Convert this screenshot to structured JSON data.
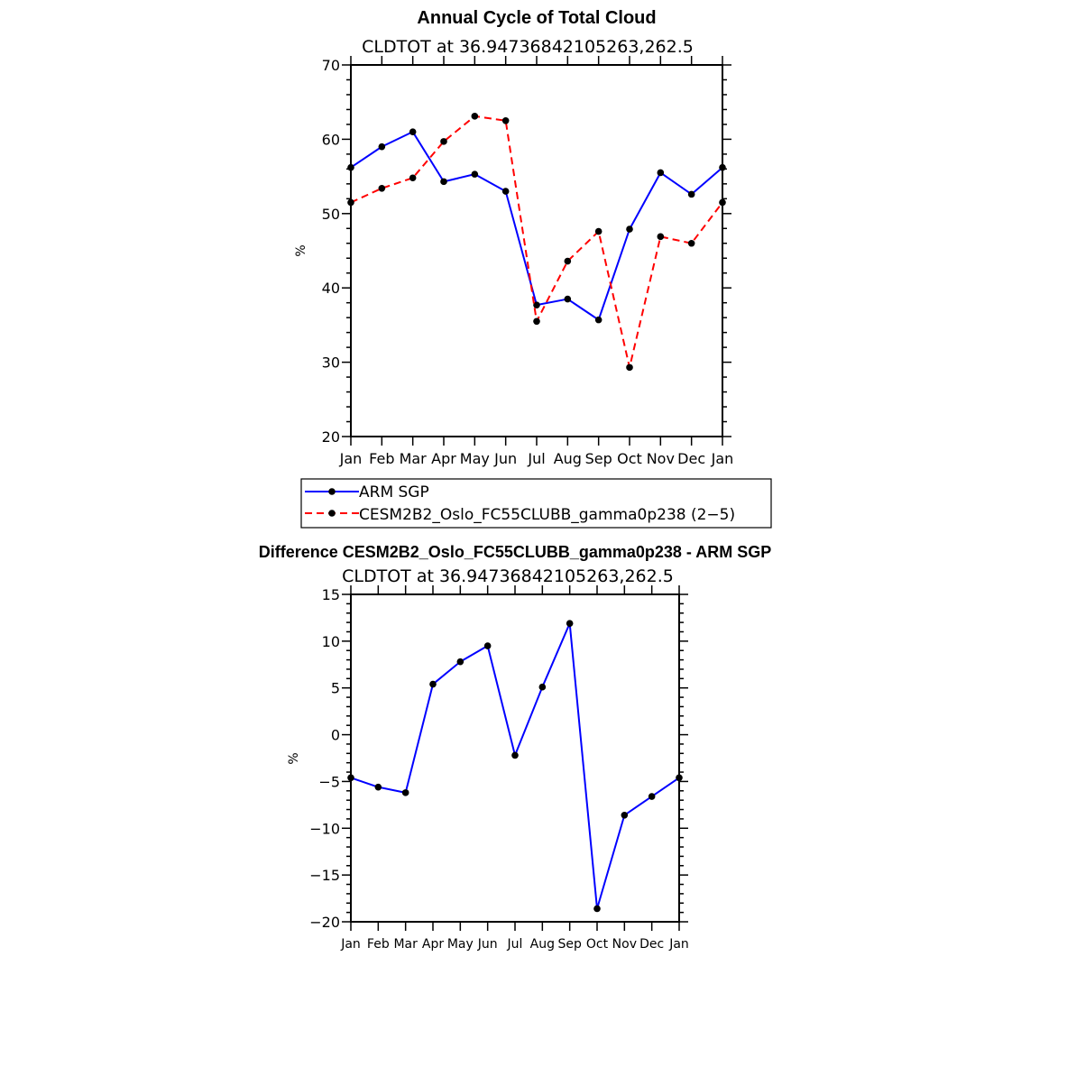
{
  "chart_data": [
    {
      "type": "line",
      "title": "Annual Cycle of Total Cloud",
      "subtitle": "CLDTOT at 36.94736842105263,262.5",
      "ylabel": "%",
      "categories": [
        "Jan",
        "Feb",
        "Mar",
        "Apr",
        "May",
        "Jun",
        "Jul",
        "Aug",
        "Sep",
        "Oct",
        "Nov",
        "Dec",
        "Jan"
      ],
      "yticks": [
        "20",
        "30",
        "40",
        "50",
        "60",
        "70"
      ],
      "ylim": [
        20,
        70
      ],
      "series": [
        {
          "name": "ARM SGP",
          "color": "#0000ff",
          "dashed": false,
          "values": [
            56.2,
            59.0,
            61.0,
            54.3,
            55.3,
            53.0,
            37.7,
            38.5,
            35.7,
            47.9,
            55.5,
            52.6,
            56.2
          ]
        },
        {
          "name": "CESM2B2_Oslo_FC55CLUBB_gamma0p238 (2−5)",
          "color": "#ff0000",
          "dashed": true,
          "values": [
            51.5,
            53.4,
            54.8,
            59.7,
            63.1,
            62.5,
            35.5,
            43.6,
            47.6,
            29.3,
            46.9,
            46.0,
            51.5
          ]
        }
      ],
      "legend_position": "bottom"
    },
    {
      "type": "line",
      "title": "Difference CESM2B2_Oslo_FC55CLUBB_gamma0p238 - ARM SGP",
      "subtitle": "CLDTOT at 36.94736842105263,262.5",
      "ylabel": "%",
      "categories": [
        "Jan",
        "Feb",
        "Mar",
        "Apr",
        "May",
        "Jun",
        "Jul",
        "Aug",
        "Sep",
        "Oct",
        "Nov",
        "Dec",
        "Jan"
      ],
      "yticks": [
        "−20",
        "−15",
        "−10",
        "−5",
        "0",
        "5",
        "10",
        "15"
      ],
      "ylim": [
        -20,
        15
      ],
      "series": [
        {
          "name": "Difference",
          "color": "#0000ff",
          "dashed": false,
          "values": [
            -4.6,
            -5.6,
            -6.2,
            5.4,
            7.8,
            9.5,
            -2.2,
            5.1,
            11.9,
            -18.6,
            -8.6,
            -6.6,
            -4.6
          ]
        }
      ]
    }
  ]
}
